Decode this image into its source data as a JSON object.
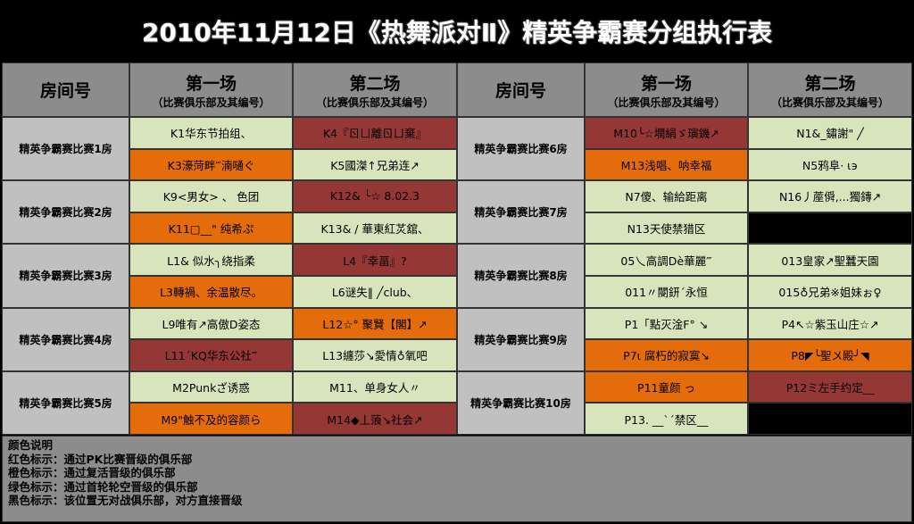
{
  "title": "2010年11月12日《热舞派对Ⅱ》精英争霸赛分组执行表",
  "headers": {
    "room": "房间号",
    "first": "第一场",
    "second": "第二场",
    "sub": "（比赛俱乐部及其编号）"
  },
  "colors": {
    "g": "#d8e4bc",
    "o": "#e46c0a",
    "r": "#953735",
    "k": "#000000",
    "room": "#c0c0c0",
    "header": "#8c8c8c"
  },
  "left_rooms": [
    {
      "name": "精英争霸赛比赛1房",
      "rows": [
        [
          {
            "text": "K1华东节拍组、",
            "c": "g"
          },
          {
            "text": "K4『ㄖㄩ離ㄖㄩ棄』",
            "c": "r"
          }
        ],
        [
          {
            "text": "K3濠菏畔‴湳嗵ぐ",
            "c": "o"
          },
          {
            "text": "K5國滐↑兄弟连↗",
            "c": "g"
          }
        ]
      ]
    },
    {
      "name": "精英争霸赛比赛2房",
      "rows": [
        [
          {
            "text": "K9<男女> 、 色团",
            "c": "g"
          },
          {
            "text": "K12& ╰☆ 8.02.3",
            "c": "r"
          }
        ],
        [
          {
            "text": "K11▢__\" 纯希ぷ",
            "c": "o"
          },
          {
            "text": "K13& / 華東紅炗舘、",
            "c": "g"
          }
        ]
      ]
    },
    {
      "name": "精英争霸赛比赛3房",
      "rows": [
        [
          {
            "text": "L1&  似水╮绕指柔",
            "c": "g"
          },
          {
            "text": "L4『幸畐』?",
            "c": "r"
          }
        ],
        [
          {
            "text": "L3轉禍、余温散尽。",
            "c": "o"
          },
          {
            "text": "L6谜失‖ ╱club、",
            "c": "g"
          }
        ]
      ]
    },
    {
      "name": "精英争霸赛比赛4房",
      "rows": [
        [
          {
            "text": "L9唯有↗高傲D姿态",
            "c": "g"
          },
          {
            "text": "L12☆° 聚賢【閣】↗",
            "c": "o"
          }
        ],
        [
          {
            "text": "L11´KQ华东公社‴",
            "c": "r"
          },
          {
            "text": "L13纏莎↘愛情♁氧吧",
            "c": "g"
          }
        ]
      ]
    },
    {
      "name": "精英争霸赛比赛5房",
      "rows": [
        [
          {
            "text": "M2Punkざ诱惑",
            "c": "g"
          },
          {
            "text": "M11、单身女人〃",
            "c": "g"
          }
        ],
        [
          {
            "text": "M9\"触不及的容颜ら",
            "c": "o"
          },
          {
            "text": "M14◆丄蒗↘社会↗",
            "c": "r"
          }
        ]
      ]
    }
  ],
  "right_rooms": [
    {
      "name": "精英争霸赛比赛6房",
      "rows": [
        [
          {
            "text": "M10╰☆墹絹ゞ璌鐖↗",
            "c": "r"
          },
          {
            "text": "N1&_鏽謝\" ╱",
            "c": "g"
          }
        ],
        [
          {
            "text": "M13浅唱、呐幸福",
            "c": "o"
          },
          {
            "text": "N5鸦阜·  ι϶",
            "c": "g"
          }
        ]
      ]
    },
    {
      "name": "精英争霸赛比赛7房",
      "rows": [
        [
          {
            "text": "N7傻、输給距离",
            "c": "g"
          },
          {
            "text": "N16丿蓙僢,...獨鏄↗",
            "c": "g"
          }
        ],
        [
          {
            "text": "N13天使禁猎区",
            "c": "g"
          },
          {
            "text": "",
            "c": "k"
          }
        ]
      ]
    },
    {
      "name": "精英争霸赛比赛8房",
      "rows": [
        [
          {
            "text": "05乀高調Dè華麗‴",
            "c": "g"
          },
          {
            "text": "013皇家↗聖蠶天園",
            "c": "g"
          }
        ],
        [
          {
            "text": "011〃閿鈃´永恒",
            "c": "g"
          },
          {
            "text": "015♁兄弟※姐妹ぉ♀",
            "c": "g"
          }
        ]
      ]
    },
    {
      "name": "精英争霸赛比赛9房",
      "rows": [
        [
          {
            "text": "P1「點灭淦F° ↘",
            "c": "g"
          },
          {
            "text": "P4↖☆紫玉山庄☆↗",
            "c": "g"
          }
        ],
        [
          {
            "text": "P7ι 腐朽的寂寞↘",
            "c": "o"
          },
          {
            "text": "P8◤╰聖〤殿╯◥",
            "c": "o"
          }
        ]
      ]
    },
    {
      "name": "精英争霸赛比赛10房",
      "rows": [
        [
          {
            "text": "P11童颜 っ",
            "c": "o"
          },
          {
            "text": "P12ミ左手约定__",
            "c": "r"
          }
        ],
        [
          {
            "text": "P13. __`´禁区__",
            "c": "g"
          },
          {
            "text": "",
            "c": "k"
          }
        ]
      ]
    }
  ],
  "legend": [
    "颜色说明",
    "红色标示：通过PK比赛晋级的俱乐部",
    "橙色标示：通过复活晋级的俱乐部",
    "绿色标示：通过首轮轮空晋级的俱乐部",
    "黑色标示：该位置无对战俱乐部，对方直接晋级"
  ]
}
